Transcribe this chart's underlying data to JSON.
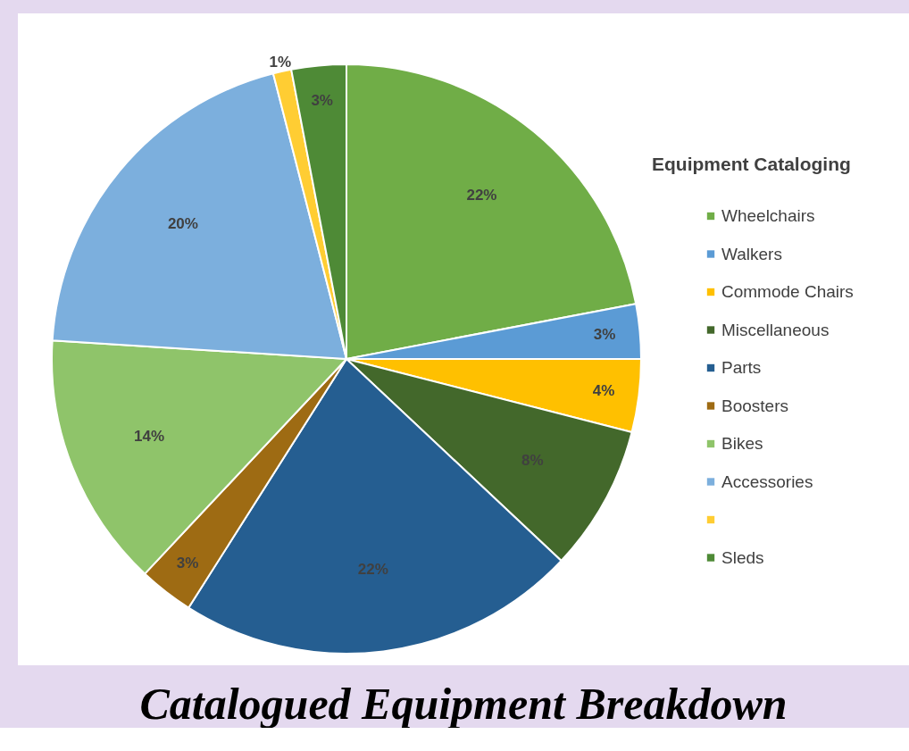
{
  "chart_data": {
    "type": "pie",
    "title": "Catalogued Equipment Breakdown",
    "legend_title": "Equipment Cataloging",
    "legend": "right",
    "categories": [
      "Wheelchairs",
      "Walkers",
      "Commode Chairs",
      "Miscellaneous",
      "Parts",
      "Boosters",
      "Bikes",
      "Accessories",
      null,
      "Sleds"
    ],
    "values": [
      22,
      3,
      4,
      8,
      22,
      3,
      14,
      20,
      1,
      3
    ],
    "value_labels": [
      "22%",
      "3%",
      "4%",
      "8%",
      "22%",
      "3%",
      "14%",
      "20%",
      "1%",
      "3%"
    ],
    "colors": [
      "#70ad47",
      "#5b9bd5",
      "#ffc000",
      "#43682b",
      "#255e91",
      "#9e6b13",
      "#8fc46a",
      "#7cafdd",
      "#ffcd33",
      "#4e8a36"
    ]
  }
}
